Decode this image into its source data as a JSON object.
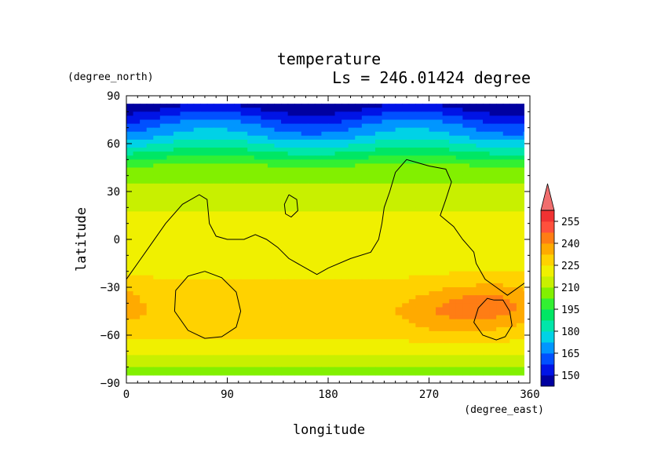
{
  "chart_data": {
    "type": "heatmap",
    "title": "temperature",
    "subtitle": "Ls = 246.01424 degree",
    "xlabel": "longitude",
    "ylabel": "latitude",
    "x_unit": "(degree_east)",
    "y_unit": "(degree_north)",
    "xlim": [
      0,
      360
    ],
    "ylim": [
      -90,
      90
    ],
    "x_ticks": [
      "0",
      "90",
      "180",
      "270",
      "360"
    ],
    "y_ticks": [
      "90",
      "60",
      "30",
      "0",
      "−30",
      "−60",
      "−90"
    ],
    "x_tick_values": [
      0,
      90,
      180,
      270,
      360
    ],
    "y_tick_values": [
      90,
      60,
      30,
      0,
      -30,
      -60,
      -90
    ],
    "colorbar": {
      "levels": [
        150,
        165,
        180,
        195,
        210,
        225,
        240,
        255
      ],
      "labels": [
        "150",
        "165",
        "180",
        "195",
        "210",
        "225",
        "240",
        "255"
      ],
      "step": 7.5,
      "min": 142.5,
      "max": 262.5,
      "colors": [
        "#0000a0",
        "#0014e6",
        "#0050ff",
        "#0096ff",
        "#00d2e6",
        "#00e6aa",
        "#00e664",
        "#32f032",
        "#82f000",
        "#c8f000",
        "#f0f000",
        "#ffd200",
        "#ffaa00",
        "#ff7d14",
        "#ff503c",
        "#f03232"
      ],
      "overflow_color": "#f06e6e"
    },
    "latitude_profile_zonal_mean": [
      {
        "lat": 85,
        "value": 145
      },
      {
        "lat": 75,
        "value": 160
      },
      {
        "lat": 65,
        "value": 172
      },
      {
        "lat": 55,
        "value": 188
      },
      {
        "lat": 45,
        "value": 205
      },
      {
        "lat": 30,
        "value": 212
      },
      {
        "lat": 15,
        "value": 218
      },
      {
        "lat": 0,
        "value": 219
      },
      {
        "lat": -15,
        "value": 222
      },
      {
        "lat": -30,
        "value": 226
      },
      {
        "lat": -45,
        "value": 229
      },
      {
        "lat": -60,
        "value": 227
      },
      {
        "lat": -70,
        "value": 219
      },
      {
        "lat": -80,
        "value": 210
      },
      {
        "lat": -85,
        "value": 205
      }
    ],
    "warm_regions": [
      {
        "lon": 330,
        "lat": -40,
        "value": 240
      },
      {
        "lon": 285,
        "lat": -45,
        "value": 238
      },
      {
        "lon": 10,
        "lat": -40,
        "value": 228
      }
    ],
    "contour_lines": [
      {
        "name": "continent",
        "points": [
          [
            0,
            -25
          ],
          [
            10,
            -15
          ],
          [
            20,
            -5
          ],
          [
            35,
            10
          ],
          [
            50,
            22
          ],
          [
            65,
            28
          ],
          [
            72,
            25
          ],
          [
            74,
            10
          ],
          [
            80,
            2
          ],
          [
            90,
            0
          ],
          [
            105,
            0
          ],
          [
            115,
            3
          ],
          [
            125,
            0
          ],
          [
            135,
            -5
          ],
          [
            145,
            -12
          ],
          [
            160,
            -18
          ],
          [
            170,
            -22
          ],
          [
            180,
            -18
          ],
          [
            200,
            -12
          ],
          [
            218,
            -8
          ],
          [
            225,
            0
          ],
          [
            228,
            10
          ],
          [
            230,
            20
          ],
          [
            235,
            30
          ],
          [
            240,
            42
          ],
          [
            250,
            50
          ],
          [
            260,
            48
          ],
          [
            270,
            46
          ],
          [
            285,
            44
          ],
          [
            290,
            36
          ],
          [
            285,
            25
          ],
          [
            280,
            15
          ],
          [
            292,
            8
          ],
          [
            300,
            0
          ],
          [
            310,
            -8
          ],
          [
            312,
            -15
          ],
          [
            320,
            -25
          ],
          [
            330,
            -30
          ],
          [
            340,
            -35
          ],
          [
            350,
            -30
          ],
          [
            360,
            -25
          ]
        ]
      },
      {
        "name": "west-basin",
        "points": [
          [
            70,
            -20
          ],
          [
            85,
            -24
          ],
          [
            98,
            -33
          ],
          [
            102,
            -45
          ],
          [
            98,
            -55
          ],
          [
            85,
            -61
          ],
          [
            70,
            -62
          ],
          [
            55,
            -57
          ],
          [
            43,
            -45
          ],
          [
            44,
            -32
          ],
          [
            55,
            -23
          ],
          [
            70,
            -20
          ]
        ]
      },
      {
        "name": "east-basin",
        "points": [
          [
            328,
            -38
          ],
          [
            336,
            -38
          ],
          [
            342,
            -45
          ],
          [
            344,
            -54
          ],
          [
            338,
            -61
          ],
          [
            330,
            -63
          ],
          [
            318,
            -60
          ],
          [
            310,
            -52
          ],
          [
            314,
            -43
          ],
          [
            322,
            -37
          ],
          [
            328,
            -38
          ]
        ]
      },
      {
        "name": "island",
        "points": [
          [
            145,
            28
          ],
          [
            152,
            25
          ],
          [
            153,
            18
          ],
          [
            147,
            14
          ],
          [
            142,
            16
          ],
          [
            141,
            22
          ],
          [
            145,
            28
          ]
        ]
      }
    ]
  }
}
